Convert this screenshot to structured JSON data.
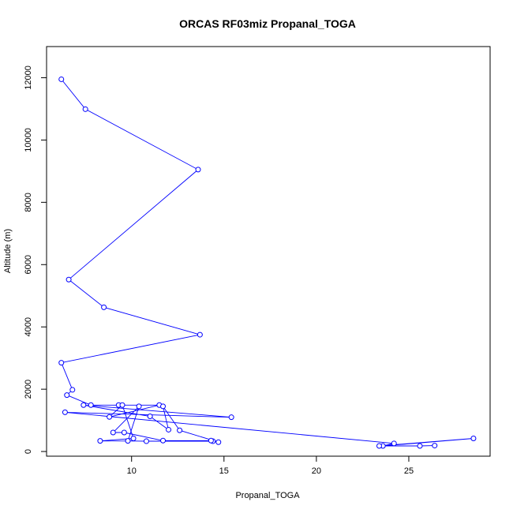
{
  "chart_data": {
    "type": "line",
    "title": "ORCAS RF03miz Propanal_TOGA",
    "xlabel": "Propanal_TOGA",
    "ylabel": "Altitude (m)",
    "xlim": [
      5.4,
      29.4
    ],
    "ylim": [
      -150,
      13000
    ],
    "x_ticks": [
      10,
      15,
      20,
      25
    ],
    "y_ticks": [
      0,
      2000,
      4000,
      6000,
      8000,
      10000,
      12000
    ],
    "grid": false,
    "legend": "none",
    "series_color": "#0000ff",
    "series": [
      {
        "x": [
          6.2,
          7.5,
          13.6,
          6.6,
          8.5,
          13.7,
          6.2,
          6.8,
          6.5,
          7.8,
          9.3,
          11.5,
          8.8,
          9.5,
          10.1,
          8.3,
          14.4,
          10.8,
          9.8,
          10.4,
          9.0,
          9.6,
          11.7,
          14.3,
          14.7,
          12.6,
          11.7,
          12.0,
          11.0,
          7.4,
          15.4,
          6.4,
          24.2,
          23.6,
          28.5,
          23.4,
          25.6,
          26.4
        ],
        "y": [
          11950,
          10990,
          9050,
          5520,
          4630,
          3750,
          2850,
          1980,
          1810,
          1490,
          1490,
          1490,
          1110,
          1490,
          420,
          340,
          330,
          330,
          340,
          1450,
          610,
          610,
          350,
          350,
          300,
          680,
          1450,
          700,
          1130,
          1490,
          1100,
          1260,
          260,
          180,
          420,
          180,
          180,
          190
        ]
      }
    ]
  }
}
